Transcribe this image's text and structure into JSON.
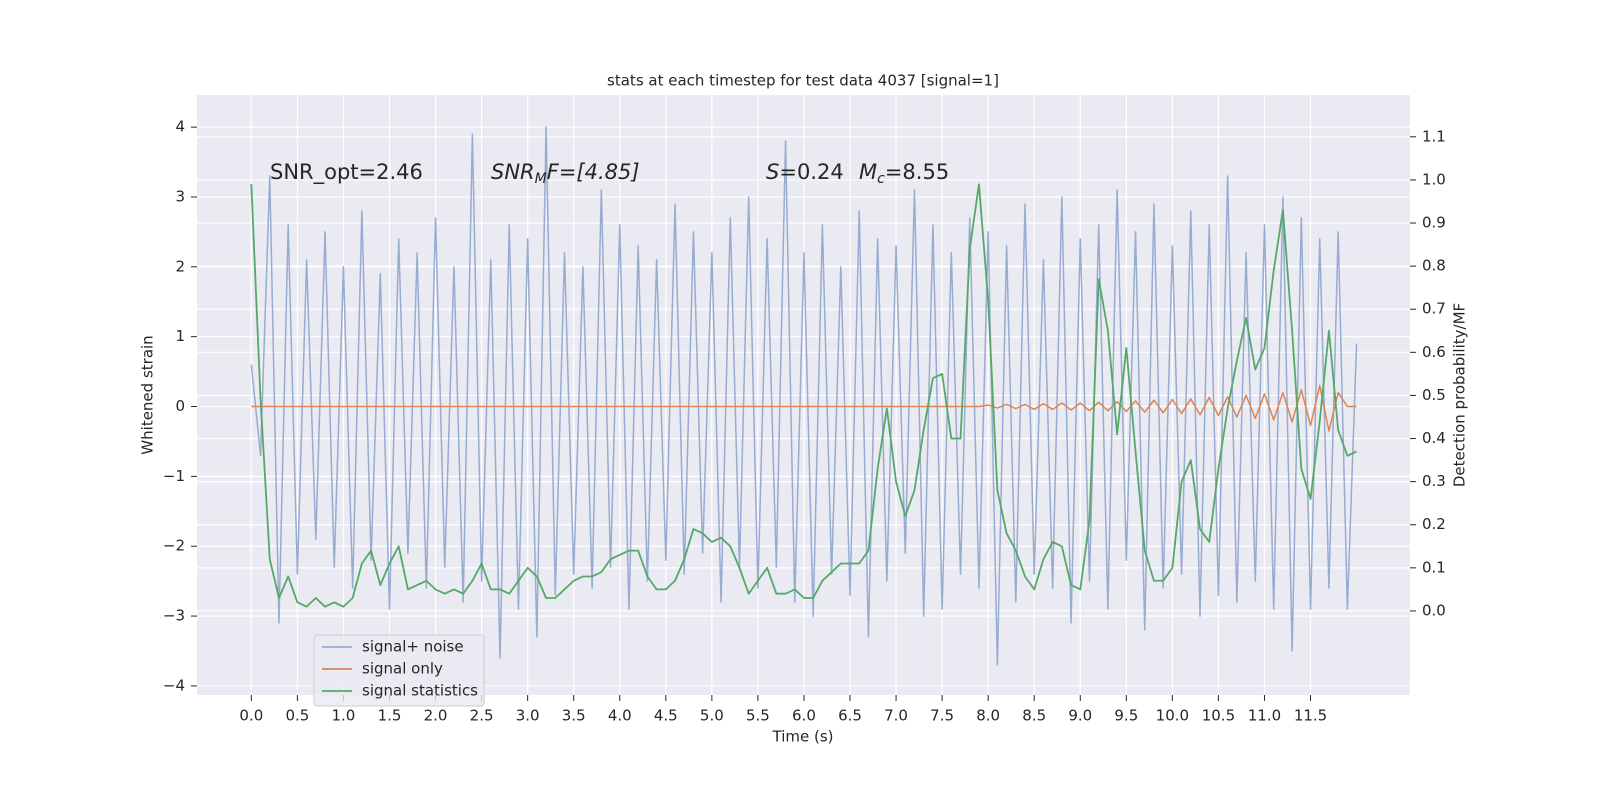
{
  "chart_data": {
    "type": "line",
    "title": "stats at each timestep for test data 4037 [signal=1]",
    "xlabel": "Time (s)",
    "ylabel": "Whitened strain",
    "y2label": "Detection probability/MF",
    "annotations": [
      [
        "SNR_opt=2.46"
      ],
      [
        "SNR",
        "M",
        "F=[4.85]"
      ],
      [
        "S",
        "=0.24"
      ],
      [
        "M",
        "c",
        "=8.55"
      ]
    ],
    "grid": true,
    "legend": "lower left",
    "xlim": [
      -0.59,
      12.58
    ],
    "ylim": [
      -4.13,
      4.46
    ],
    "y2lim": [
      -0.195,
      1.197
    ],
    "xticks": [
      {
        "value": 0,
        "label": "0.0"
      },
      {
        "value": 0.5,
        "label": "0.5"
      },
      {
        "value": 1,
        "label": "1.0"
      },
      {
        "value": 1.5,
        "label": "1.5"
      },
      {
        "value": 2,
        "label": "2.0"
      },
      {
        "value": 2.5,
        "label": "2.5"
      },
      {
        "value": 3,
        "label": "3.0"
      },
      {
        "value": 3.5,
        "label": "3.5"
      },
      {
        "value": 4,
        "label": "4.0"
      },
      {
        "value": 4.5,
        "label": "4.5"
      },
      {
        "value": 5,
        "label": "5.0"
      },
      {
        "value": 5.5,
        "label": "5.5"
      },
      {
        "value": 6,
        "label": "6.0"
      },
      {
        "value": 6.5,
        "label": "6.5"
      },
      {
        "value": 7,
        "label": "7.0"
      },
      {
        "value": 7.5,
        "label": "7.5"
      },
      {
        "value": 8,
        "label": "8.0"
      },
      {
        "value": 8.5,
        "label": "8.5"
      },
      {
        "value": 9,
        "label": "9.0"
      },
      {
        "value": 9.5,
        "label": "9.5"
      },
      {
        "value": 10,
        "label": "10.0"
      },
      {
        "value": 10.5,
        "label": "10.5"
      },
      {
        "value": 11,
        "label": "11.0"
      },
      {
        "value": 11.5,
        "label": "11.5"
      }
    ],
    "yticks": [
      {
        "value": -4,
        "label": "−4"
      },
      {
        "value": -3,
        "label": "−3"
      },
      {
        "value": -2,
        "label": "−2"
      },
      {
        "value": -1,
        "label": "−1"
      },
      0,
      1,
      2,
      3,
      4
    ],
    "y2ticks": [
      {
        "value": 0,
        "label": "0.0"
      },
      {
        "value": 0.1,
        "label": "0.1"
      },
      {
        "value": 0.2,
        "label": "0.2"
      },
      {
        "value": 0.3,
        "label": "0.3"
      },
      {
        "value": 0.4,
        "label": "0.4"
      },
      {
        "value": 0.5,
        "label": "0.5"
      },
      {
        "value": 0.6,
        "label": "0.6"
      },
      {
        "value": 0.7,
        "label": "0.7"
      },
      {
        "value": 0.8,
        "label": "0.8"
      },
      {
        "value": 0.9,
        "label": "0.9"
      },
      {
        "value": 1,
        "label": "1.0"
      },
      {
        "value": 1.1,
        "label": "1.1"
      }
    ],
    "x": [
      0,
      0.1,
      0.2,
      0.3,
      0.4,
      0.5,
      0.6,
      0.7,
      0.8,
      0.9,
      1,
      1.1,
      1.2,
      1.3,
      1.4,
      1.5,
      1.6,
      1.7,
      1.8,
      1.9,
      2,
      2.1,
      2.2,
      2.3,
      2.4,
      2.5,
      2.6,
      2.7,
      2.8,
      2.9,
      3,
      3.1,
      3.2,
      3.3,
      3.4,
      3.5,
      3.6,
      3.7,
      3.8,
      3.9,
      4,
      4.1,
      4.2,
      4.3,
      4.4,
      4.5,
      4.6,
      4.7,
      4.8,
      4.9,
      5,
      5.1,
      5.2,
      5.3,
      5.4,
      5.5,
      5.6,
      5.7,
      5.8,
      5.9,
      6,
      6.1,
      6.2,
      6.3,
      6.4,
      6.5,
      6.6,
      6.7,
      6.8,
      6.9,
      7,
      7.1,
      7.2,
      7.3,
      7.4,
      7.5,
      7.6,
      7.7,
      7.8,
      7.9,
      8,
      8.1,
      8.2,
      8.3,
      8.4,
      8.5,
      8.6,
      8.7,
      8.8,
      8.9,
      9,
      9.1,
      9.2,
      9.3,
      9.4,
      9.5,
      9.6,
      9.7,
      9.8,
      9.9,
      10,
      10.1,
      10.2,
      10.3,
      10.4,
      10.5,
      10.6,
      10.7,
      10.8,
      10.9,
      11,
      11.1,
      11.2,
      11.3,
      11.4,
      11.5,
      11.6,
      11.7,
      11.8,
      11.9,
      12
    ],
    "series": [
      {
        "name": "signal+ noise",
        "color": "#98abd0",
        "axis": "y",
        "values": [
          0.6,
          -0.7,
          3.3,
          -3.1,
          2.6,
          -2.4,
          2.1,
          -1.9,
          2.5,
          -2.3,
          2.0,
          -2.6,
          2.8,
          -2.2,
          1.9,
          -2.9,
          2.4,
          -2.1,
          2.2,
          -2.6,
          2.7,
          -2.3,
          2.0,
          -2.8,
          3.9,
          -2.5,
          2.1,
          -3.6,
          2.6,
          -2.9,
          2.4,
          -3.3,
          4.0,
          -2.7,
          2.2,
          -2.4,
          2.0,
          -2.6,
          3.1,
          -2.3,
          2.6,
          -2.9,
          2.3,
          -2.5,
          2.1,
          -2.2,
          2.9,
          -2.4,
          2.5,
          -2.1,
          2.2,
          -2.8,
          2.7,
          -2.3,
          3.0,
          -2.6,
          2.4,
          -2.3,
          3.8,
          -2.8,
          2.2,
          -3.0,
          2.6,
          -2.4,
          2.0,
          -2.7,
          2.8,
          -3.3,
          2.4,
          -2.5,
          2.3,
          -2.1,
          3.1,
          -3.0,
          2.6,
          -2.9,
          2.2,
          -2.4,
          2.7,
          -2.6,
          2.5,
          -3.7,
          2.3,
          -2.8,
          2.9,
          -2.4,
          2.1,
          -2.6,
          3.0,
          -3.1,
          2.4,
          -2.5,
          2.6,
          -2.9,
          3.1,
          -2.2,
          2.5,
          -3.2,
          2.9,
          -2.6,
          2.3,
          -2.4,
          2.8,
          -3.0,
          2.6,
          -2.7,
          3.3,
          -2.8,
          2.2,
          -2.5,
          2.6,
          -2.9,
          3.0,
          -3.5,
          2.7,
          -2.9,
          2.4,
          -2.6,
          2.5,
          -2.9,
          0.9
        ]
      },
      {
        "name": "signal only",
        "color": "#dd8452",
        "axis": "y",
        "values": [
          0,
          0,
          0,
          0,
          0,
          0,
          0,
          0,
          0,
          0,
          0,
          0,
          0,
          0,
          0,
          0,
          0,
          0,
          0,
          0,
          0,
          0,
          0,
          0,
          0,
          0,
          0,
          0,
          0,
          0,
          0,
          0,
          0,
          0,
          0,
          0,
          0,
          0,
          0,
          0,
          0,
          0,
          0,
          0,
          0,
          0,
          0,
          0,
          0,
          0,
          0,
          0,
          0,
          0,
          0,
          0,
          0,
          0,
          0,
          0,
          0,
          0,
          0,
          0,
          0,
          0,
          0,
          0,
          0,
          0,
          0,
          0,
          0,
          0,
          0,
          0,
          0,
          0,
          0,
          0,
          0.02,
          -0.02,
          0.03,
          -0.03,
          0.03,
          -0.04,
          0.04,
          -0.04,
          0.05,
          -0.05,
          0.05,
          -0.06,
          0.06,
          -0.06,
          0.07,
          -0.07,
          0.08,
          -0.08,
          0.09,
          -0.09,
          0.1,
          -0.1,
          0.11,
          -0.12,
          0.13,
          -0.13,
          0.14,
          -0.15,
          0.16,
          -0.17,
          0.18,
          -0.19,
          0.2,
          -0.22,
          0.24,
          -0.27,
          0.3,
          -0.35,
          0.2,
          0,
          0
        ]
      },
      {
        "name": "signal statistics",
        "color": "#55a868",
        "axis": "y2",
        "values": [
          0.99,
          0.49,
          0.12,
          0.03,
          0.08,
          0.02,
          0.01,
          0.03,
          0.01,
          0.02,
          0.01,
          0.03,
          0.11,
          0.14,
          0.06,
          0.11,
          0.15,
          0.05,
          0.06,
          0.07,
          0.05,
          0.04,
          0.05,
          0.04,
          0.07,
          0.11,
          0.05,
          0.05,
          0.04,
          0.07,
          0.1,
          0.08,
          0.03,
          0.03,
          0.05,
          0.07,
          0.08,
          0.08,
          0.09,
          0.12,
          0.13,
          0.14,
          0.14,
          0.08,
          0.05,
          0.05,
          0.07,
          0.12,
          0.19,
          0.18,
          0.16,
          0.17,
          0.15,
          0.1,
          0.04,
          0.07,
          0.1,
          0.04,
          0.04,
          0.05,
          0.03,
          0.03,
          0.07,
          0.09,
          0.11,
          0.11,
          0.11,
          0.14,
          0.33,
          0.47,
          0.3,
          0.22,
          0.28,
          0.42,
          0.54,
          0.55,
          0.4,
          0.4,
          0.84,
          0.99,
          0.72,
          0.28,
          0.18,
          0.14,
          0.08,
          0.05,
          0.12,
          0.16,
          0.15,
          0.06,
          0.05,
          0.21,
          0.77,
          0.65,
          0.41,
          0.61,
          0.37,
          0.14,
          0.07,
          0.07,
          0.1,
          0.3,
          0.35,
          0.19,
          0.16,
          0.33,
          0.47,
          0.58,
          0.68,
          0.56,
          0.61,
          0.79,
          0.93,
          0.65,
          0.33,
          0.26,
          0.44,
          0.65,
          0.42,
          0.36,
          0.37
        ]
      }
    ]
  }
}
